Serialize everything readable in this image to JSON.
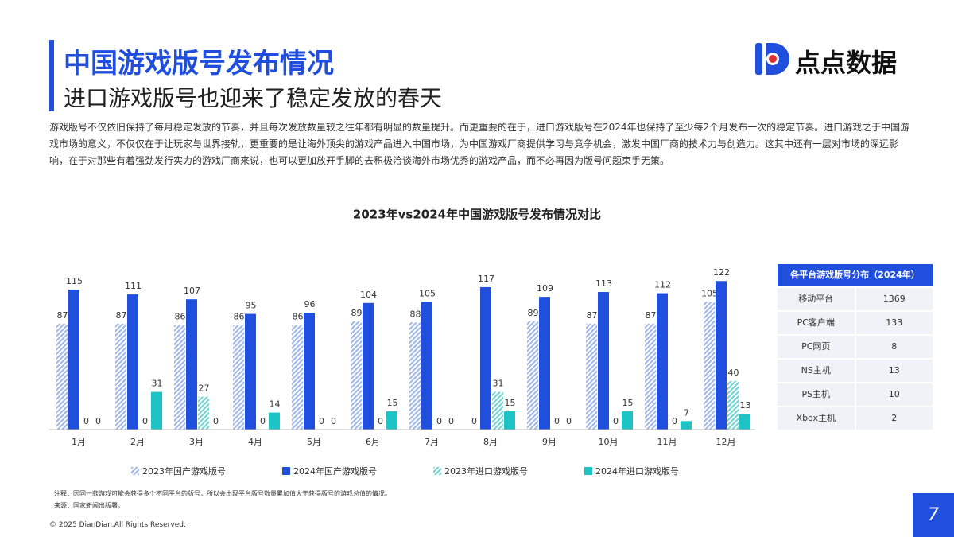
{
  "header": {
    "title": "中国游戏版号发布情况",
    "subtitle": "进口游戏版号也迎来了稳定发放的春天",
    "logo": "点点数据"
  },
  "body": "游戏版号不仅依旧保持了每月稳定发放的节奏，并且每次发放数量较之往年都有明显的数量提升。而更重要的在于，进口游戏版号在2024年也保持了至少每2个月发布一次的稳定节奏。进口游戏之于中国游戏市场的意义，不仅仅在于让玩家与世界接轨，更重要的是让海外顶尖的游戏产品进入中国市场，为中国游戏厂商提供学习与竞争机会，激发中国厂商的技术力与创造力。这其中还有一层对市场的深远影响，在于对那些有着强劲发行实力的游戏厂商来说，也可以更加放开手脚的去积极洽谈海外市场优秀的游戏产品，而不必再因为版号问题束手无策。",
  "chart_data": {
    "type": "bar",
    "title": "2023年vs2024年中国游戏版号发布情况对比",
    "categories": [
      "1月",
      "2月",
      "3月",
      "4月",
      "5月",
      "6月",
      "7月",
      "8月",
      "9月",
      "10月",
      "11月",
      "12月"
    ],
    "series": [
      {
        "name": "2023年国产游戏版号",
        "color": "#9fb6ea",
        "hatched": true,
        "values": [
          87,
          87,
          86,
          86,
          86,
          89,
          88,
          0,
          89,
          87,
          87,
          105
        ]
      },
      {
        "name": "2024年国产游戏版号",
        "color": "#1f4fdc",
        "hatched": false,
        "values": [
          115,
          111,
          107,
          95,
          96,
          104,
          105,
          117,
          109,
          113,
          112,
          122
        ]
      },
      {
        "name": "2023年进口游戏版号",
        "color": "#6fd3d3",
        "hatched": true,
        "values": [
          0,
          0,
          27,
          0,
          0,
          0,
          0,
          31,
          0,
          0,
          0,
          40
        ]
      },
      {
        "name": "2024年进口游戏版号",
        "color": "#1ec3c6",
        "hatched": false,
        "values": [
          0,
          31,
          0,
          14,
          0,
          15,
          0,
          15,
          0,
          15,
          7,
          13
        ]
      }
    ],
    "ylim": [
      0,
      130
    ]
  },
  "table": {
    "title": "各平台游戏版号分布（2024年）",
    "rows": [
      [
        "移动平台",
        "1369"
      ],
      [
        "PC客户端",
        "133"
      ],
      [
        "PC网页",
        "8"
      ],
      [
        "NS主机",
        "13"
      ],
      [
        "PS主机",
        "10"
      ],
      [
        "Xbox主机",
        "2"
      ]
    ]
  },
  "notes": [
    "注释：因同一款游戏可能会获得多个不同平台的版号，所以会出现平台版号数量累加值大于获得版号的游戏总值的情况。",
    "来源：国家新闻出版署。"
  ],
  "footer": {
    "copyright": "© 2025 DianDian.All Rights Reserved.",
    "page": "7"
  }
}
